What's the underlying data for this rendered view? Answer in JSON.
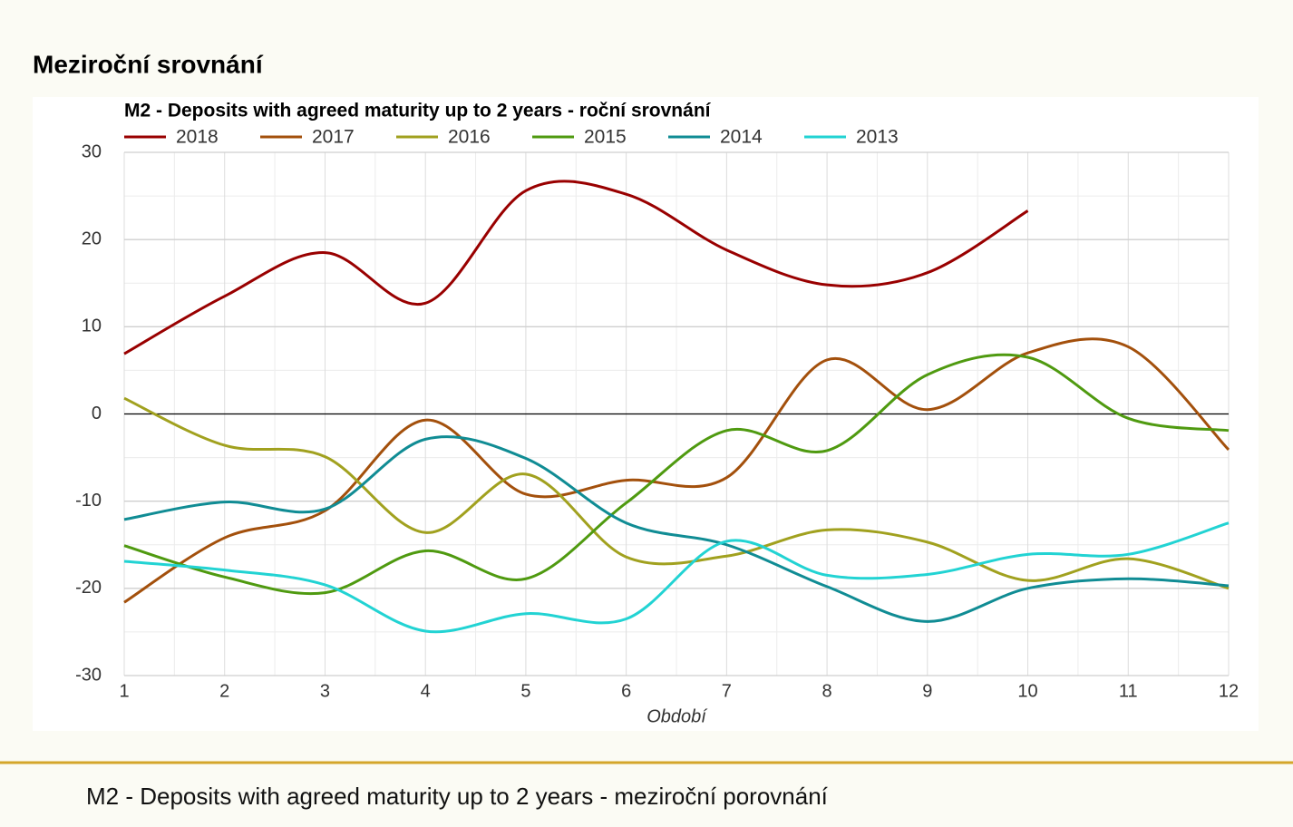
{
  "page": {
    "heading": "Meziroční srovnání",
    "footer": "M2 - Deposits with agreed maturity up to 2 years - meziroční porovnání"
  },
  "chart_data": {
    "type": "line",
    "title": "M2 - Deposits with agreed maturity up to 2 years - roční srovnání",
    "x_label": "Období",
    "x": [
      1,
      2,
      3,
      4,
      5,
      6,
      7,
      8,
      9,
      10,
      11,
      12
    ],
    "xlim": [
      1,
      12
    ],
    "xticks": [
      1,
      2,
      3,
      4,
      5,
      6,
      7,
      8,
      9,
      10,
      11,
      12
    ],
    "ylim": [
      -30,
      30
    ],
    "yticks": [
      -30,
      -20,
      -10,
      0,
      10,
      20,
      30
    ],
    "grid": true,
    "legend": "top",
    "series": [
      {
        "name": "2018",
        "color": "#990000",
        "values": [
          6.9,
          13.5,
          18.5,
          12.7,
          25.6,
          25.2,
          18.8,
          14.8,
          16.2,
          23.3,
          null,
          null
        ]
      },
      {
        "name": "2017",
        "color": "#a3500c",
        "values": [
          -21.6,
          -14.2,
          -11.1,
          -0.7,
          -9.2,
          -7.6,
          -7.3,
          6.2,
          0.5,
          7.0,
          7.7,
          -4.1
        ]
      },
      {
        "name": "2016",
        "color": "#a1a11f",
        "values": [
          1.8,
          -3.6,
          -4.9,
          -13.6,
          -6.9,
          -16.4,
          -16.3,
          -13.3,
          -14.7,
          -19.1,
          -16.6,
          -20.0
        ]
      },
      {
        "name": "2015",
        "color": "#4f9a10",
        "values": [
          -15.1,
          -18.7,
          -20.5,
          -15.7,
          -18.9,
          -10.2,
          -1.9,
          -4.2,
          4.5,
          6.5,
          -0.5,
          -1.9
        ]
      },
      {
        "name": "2014",
        "color": "#108c94",
        "values": [
          -12.1,
          -10.1,
          -10.9,
          -2.9,
          -5.1,
          -12.5,
          -15.0,
          -19.8,
          -23.8,
          -20.0,
          -18.9,
          -19.7
        ]
      },
      {
        "name": "2013",
        "color": "#22d3d3",
        "values": [
          -16.9,
          -17.9,
          -19.6,
          -24.9,
          -22.9,
          -23.5,
          -14.6,
          -18.5,
          -18.4,
          -16.1,
          -16.1,
          -12.5
        ]
      }
    ]
  }
}
